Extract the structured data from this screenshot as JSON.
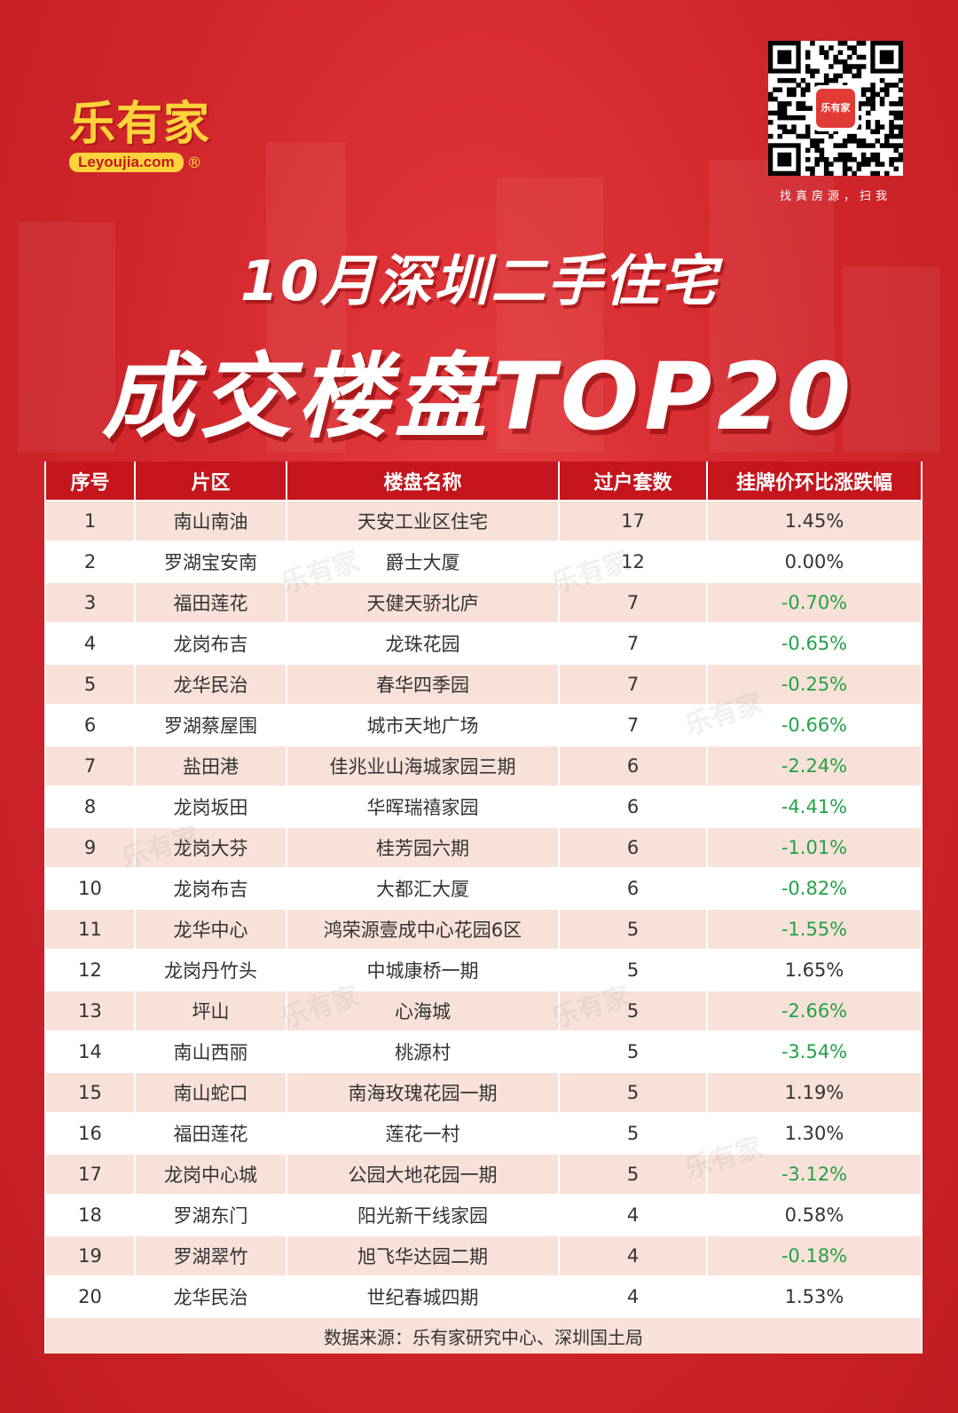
{
  "brand": {
    "logo_text": "乐有家",
    "logo_url_text": "Leyoujia.com",
    "registered_mark": "®"
  },
  "qr": {
    "badge_text": "乐有家",
    "caption": "找真房源，扫我"
  },
  "title": {
    "line1": "10月深圳二手住宅",
    "line2": "成交楼盘TOP20"
  },
  "table": {
    "headers": [
      "序号",
      "片区",
      "楼盘名称",
      "过户套数",
      "挂牌价环比涨跌幅"
    ],
    "rows": [
      [
        "1",
        "南山南油",
        "天安工业区住宅",
        "17",
        "1.45%"
      ],
      [
        "2",
        "罗湖宝安南",
        "爵士大厦",
        "12",
        "0.00%"
      ],
      [
        "3",
        "福田莲花",
        "天健天骄北庐",
        "7",
        "-0.70%"
      ],
      [
        "4",
        "龙岗布吉",
        "龙珠花园",
        "7",
        "-0.65%"
      ],
      [
        "5",
        "龙华民治",
        "春华四季园",
        "7",
        "-0.25%"
      ],
      [
        "6",
        "罗湖蔡屋围",
        "城市天地广场",
        "7",
        "-0.66%"
      ],
      [
        "7",
        "盐田港",
        "佳兆业山海城家园三期",
        "6",
        "-2.24%"
      ],
      [
        "8",
        "龙岗坂田",
        "华晖瑞禧家园",
        "6",
        "-4.41%"
      ],
      [
        "9",
        "龙岗大芬",
        "桂芳园六期",
        "6",
        "-1.01%"
      ],
      [
        "10",
        "龙岗布吉",
        "大都汇大厦",
        "6",
        "-0.82%"
      ],
      [
        "11",
        "龙华中心",
        "鸿荣源壹成中心花园6区",
        "5",
        "-1.55%"
      ],
      [
        "12",
        "龙岗丹竹头",
        "中城康桥一期",
        "5",
        "1.65%"
      ],
      [
        "13",
        "坪山",
        "心海城",
        "5",
        "-2.66%"
      ],
      [
        "14",
        "南山西丽",
        "桃源村",
        "5",
        "-3.54%"
      ],
      [
        "15",
        "南山蛇口",
        "南海玫瑰花园一期",
        "5",
        "1.19%"
      ],
      [
        "16",
        "福田莲花",
        "莲花一村",
        "5",
        "1.30%"
      ],
      [
        "17",
        "龙岗中心城",
        "公园大地花园一期",
        "5",
        "-3.12%"
      ],
      [
        "18",
        "罗湖东门",
        "阳光新干线家园",
        "4",
        "0.58%"
      ],
      [
        "19",
        "罗湖翠竹",
        "旭飞华达园二期",
        "4",
        "-0.18%"
      ],
      [
        "20",
        "龙华民治",
        "世纪春城四期",
        "4",
        "1.53%"
      ]
    ],
    "footer": "数据来源：乐有家研究中心、深圳国土局"
  },
  "colors": {
    "header_bg": "#c4161c",
    "stripe": "#f8e1d8",
    "negative": "#23a247",
    "brand_yellow": "#ffd43a"
  }
}
